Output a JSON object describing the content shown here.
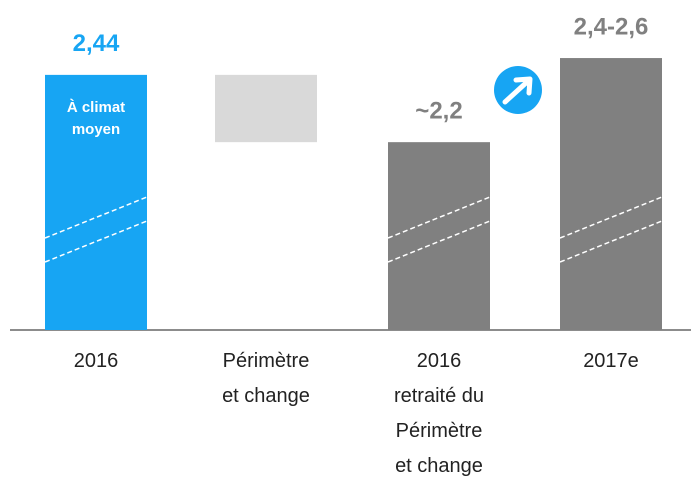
{
  "chart_data": {
    "type": "waterfall",
    "categories": [
      [
        "2016"
      ],
      [
        "Périmètre",
        "et change"
      ],
      [
        "2016",
        "retraité du",
        "Périmètre",
        "et change"
      ],
      [
        "2017e"
      ]
    ],
    "values": [
      2.44,
      -0.24,
      2.2,
      2.5
    ],
    "value_labels": [
      "2,44",
      null,
      "~2,2",
      "2,4-2,6"
    ],
    "measures": [
      "total",
      "relative",
      "total",
      "total"
    ],
    "colors": [
      "#17a5f3",
      "#d9d9d9",
      "#808080",
      "#808080"
    ],
    "annotation": [
      "À climat",
      "moyen"
    ],
    "ylim": [
      1.53,
      2.65
    ]
  }
}
